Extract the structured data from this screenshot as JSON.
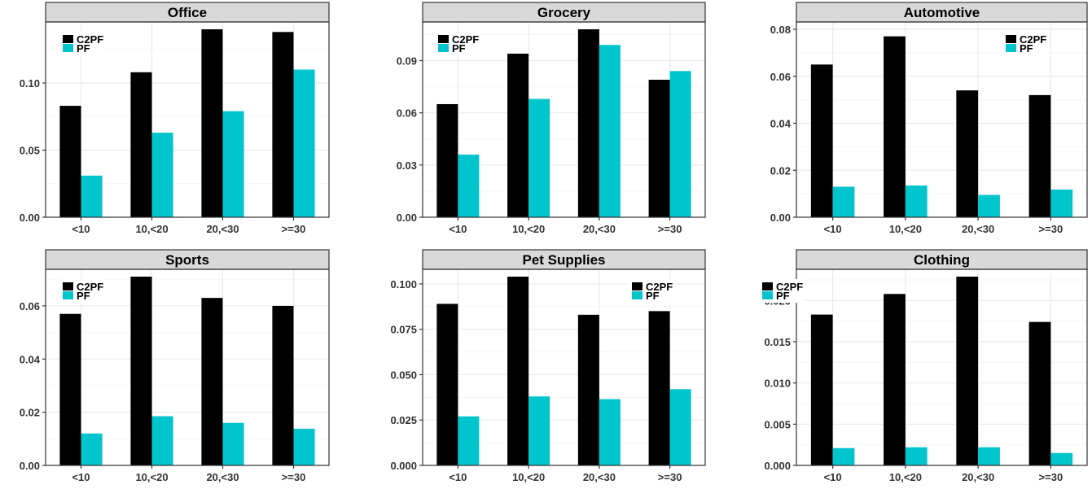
{
  "chart_data": [
    {
      "type": "bar",
      "title": "Office",
      "categories": [
        "<10",
        "10,<20",
        "20,<30",
        ">=30"
      ],
      "series": [
        {
          "name": "C2PF",
          "values": [
            0.083,
            0.108,
            0.14,
            0.138
          ]
        },
        {
          "name": "PF",
          "values": [
            0.031,
            0.063,
            0.079,
            0.11
          ]
        }
      ],
      "ylim": [
        0,
        0.14
      ],
      "yticks": [
        "0.00",
        "0.05",
        "0.10"
      ],
      "yticks_values": [
        0,
        0.05,
        0.1
      ],
      "legend_position": "top-left"
    },
    {
      "type": "bar",
      "title": "Grocery",
      "categories": [
        "<10",
        "10,<20",
        "20,<30",
        ">=30"
      ],
      "series": [
        {
          "name": "C2PF",
          "values": [
            0.065,
            0.094,
            0.108,
            0.079
          ]
        },
        {
          "name": "PF",
          "values": [
            0.036,
            0.068,
            0.099,
            0.084
          ]
        }
      ],
      "ylim": [
        0,
        0.108
      ],
      "yticks": [
        "0.00",
        "0.03",
        "0.06",
        "0.09"
      ],
      "yticks_values": [
        0,
        0.03,
        0.06,
        0.09
      ],
      "legend_position": "top-left"
    },
    {
      "type": "bar",
      "title": "Automotive",
      "categories": [
        "<10",
        "10,<20",
        "20,<30",
        ">=30"
      ],
      "series": [
        {
          "name": "C2PF",
          "values": [
            0.065,
            0.077,
            0.054,
            0.052
          ]
        },
        {
          "name": "PF",
          "values": [
            0.013,
            0.0135,
            0.0095,
            0.0118
          ]
        }
      ],
      "ylim": [
        0,
        0.08
      ],
      "yticks": [
        "0.00",
        "0.02",
        "0.04",
        "0.06",
        "0.08"
      ],
      "yticks_values": [
        0,
        0.02,
        0.04,
        0.06,
        0.08
      ],
      "legend_position": "top-right"
    },
    {
      "type": "bar",
      "title": "Sports",
      "categories": [
        "<10",
        "10,<20",
        "20,<30",
        ">=30"
      ],
      "series": [
        {
          "name": "C2PF",
          "values": [
            0.057,
            0.071,
            0.063,
            0.06
          ]
        },
        {
          "name": "PF",
          "values": [
            0.012,
            0.0185,
            0.016,
            0.0138
          ]
        }
      ],
      "ylim": [
        0,
        0.071
      ],
      "yticks": [
        "0.00",
        "0.02",
        "0.04",
        "0.06"
      ],
      "yticks_values": [
        0,
        0.02,
        0.04,
        0.06
      ],
      "legend_position": "top-left"
    },
    {
      "type": "bar",
      "title": "Pet Supplies",
      "categories": [
        "<10",
        "10,<20",
        "20,<30",
        ">=30"
      ],
      "series": [
        {
          "name": "C2PF",
          "values": [
            0.089,
            0.104,
            0.083,
            0.085
          ]
        },
        {
          "name": "PF",
          "values": [
            0.027,
            0.038,
            0.0365,
            0.042
          ]
        }
      ],
      "ylim": [
        0,
        0.104
      ],
      "yticks": [
        "0.000",
        "0.025",
        "0.050",
        "0.075",
        "0.100"
      ],
      "yticks_values": [
        0,
        0.025,
        0.05,
        0.075,
        0.1
      ],
      "legend_position": "top-right"
    },
    {
      "type": "bar",
      "title": "Clothing",
      "categories": [
        "<10",
        "10,<20",
        "20,<30",
        ">=30"
      ],
      "series": [
        {
          "name": "C2PF",
          "values": [
            0.0183,
            0.0208,
            0.0229,
            0.0174
          ]
        },
        {
          "name": "PF",
          "values": [
            0.0021,
            0.0022,
            0.0022,
            0.0015
          ]
        }
      ],
      "ylim": [
        0,
        0.0229
      ],
      "yticks": [
        "0.000",
        "0.005",
        "0.010",
        "0.015",
        "0.020"
      ],
      "yticks_values": [
        0,
        0.005,
        0.01,
        0.015,
        0.02
      ],
      "legend_position": "top-left"
    }
  ],
  "colors": {
    "C2PF": "#000000",
    "PF": "#00c5cd",
    "strip_fill": "#d9d9d9",
    "grid_major": "#ebebeb",
    "grid_minor": "#f5f5f5"
  }
}
